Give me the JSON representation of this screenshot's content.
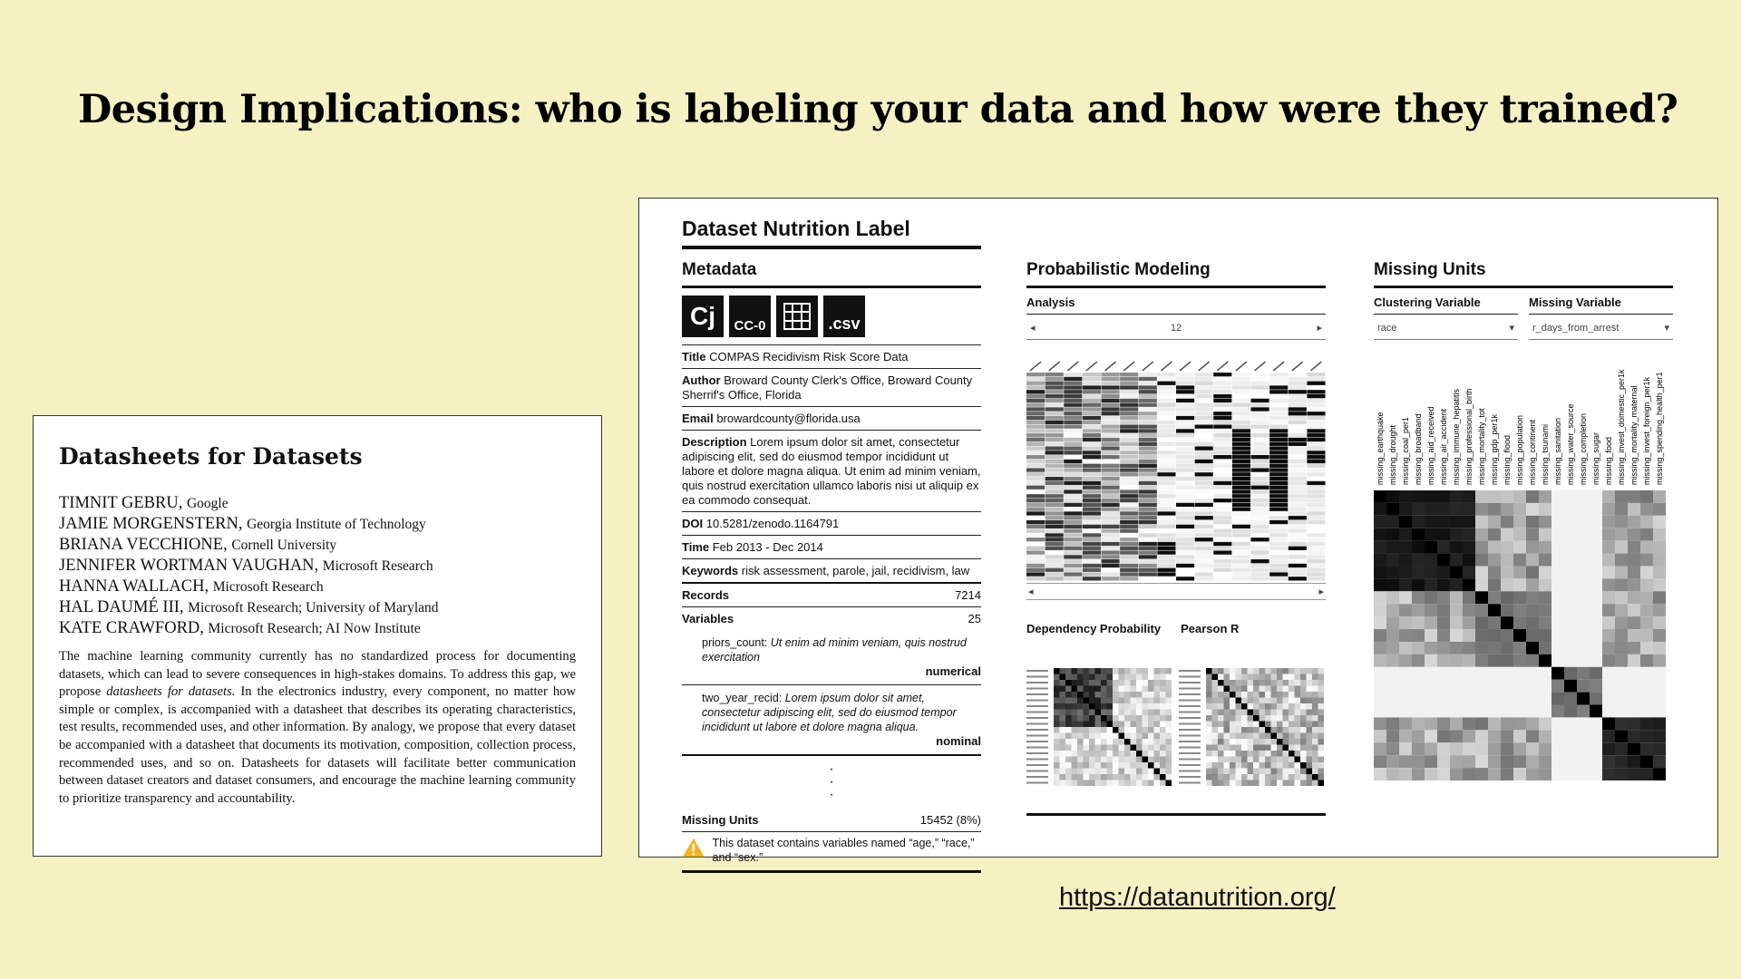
{
  "slide": {
    "title": "Design Implications: who is labeling your data and how were they trained?",
    "link": "https://datanutrition.org/"
  },
  "datasheet": {
    "title": "Datasheets for Datasets",
    "authors": [
      {
        "name": "TIMNIT GEBRU,",
        "affiliation": "Google"
      },
      {
        "name": "JAMIE MORGENSTERN,",
        "affiliation": "Georgia Institute of Technology"
      },
      {
        "name": "BRIANA VECCHIONE,",
        "affiliation": "Cornell University"
      },
      {
        "name": "JENNIFER WORTMAN VAUGHAN,",
        "affiliation": "Microsoft Research"
      },
      {
        "name": "HANNA WALLACH,",
        "affiliation": "Microsoft Research"
      },
      {
        "name": "HAL DAUMÉ III,",
        "affiliation": "Microsoft Research; University of Maryland"
      },
      {
        "name": "KATE CRAWFORD,",
        "affiliation": "Microsoft Research; AI Now Institute"
      }
    ],
    "abstract_part1": "The machine learning community currently has no standardized process for documenting datasets, which can lead to severe consequences in high-stakes domains. To address this gap, we propose ",
    "abstract_italic": "datasheets for datasets.",
    "abstract_part2": " In the electronics industry, every component, no matter how simple or complex, is accompanied with a datasheet that describes its operating characteristics, test results, recommended uses, and other information. By analogy, we propose that every dataset be accompanied with a datasheet that documents its motivation, composition, collection process, recommended uses, and so on. Datasheets for datasets will facilitate better communication between dataset creators and dataset consumers, and encourage the machine learning community to prioritize transparency and accountability."
  },
  "nutrition": {
    "title": "Dataset Nutrition Label",
    "metadata": {
      "heading": "Metadata",
      "icons": [
        "Cj",
        "CC-0",
        "grid-icon",
        ".csv"
      ],
      "title_label": "Title",
      "title_value": "COMPAS Recidivism Risk Score Data",
      "author_label": "Author",
      "author_value": "Broward County Clerk's Office, Broward County Sherrif's Office, Florida",
      "email_label": "Email",
      "email_value": "browardcounty@florida.usa",
      "description_label": "Description",
      "description_value": "Lorem ipsum dolor sit amet, consectetur adipiscing elit, sed do eiusmod tempor incididunt ut labore et dolore magna aliqua. Ut enim ad minim veniam, quis nostrud exercitation ullamco laboris nisi ut aliquip ex ea commodo consequat.",
      "doi_label": "DOI",
      "doi_value": "10.5281/zenodo.1164791",
      "time_label": "Time",
      "time_value": "Feb 2013 - Dec 2014",
      "keywords_label": "Keywords",
      "keywords_value": "risk assessment, parole, jail, recidivism, law",
      "records_label": "Records",
      "records_value": "7214",
      "variables_label": "Variables",
      "variables_value": "25",
      "var1_name": "priors_count:",
      "var1_desc": "Ut enim ad minim veniam, quis nostrud exercitation",
      "var1_type": "numerical",
      "var2_name": "two_year_recid:",
      "var2_desc": "Lorem ipsum dolor sit amet, consectetur adipiscing elit, sed do eiusmod tempor incididunt ut labore et dolore magna aliqua.",
      "var2_type": "nominal",
      "missing_label": "Missing Units",
      "missing_value": "15452 (8%)",
      "warning": "This dataset contains variables named “age,” “race,” and “sex.”"
    },
    "prob": {
      "heading": "Probabilistic Modeling",
      "analysis_label": "Analysis",
      "analysis_value": "12",
      "dependency_label": "Dependency Probability",
      "pearson_label": "Pearson R"
    },
    "missing": {
      "heading": "Missing Units",
      "clustering_label": "Clustering Variable",
      "clustering_value": "race",
      "missing_var_label": "Missing Variable",
      "missing_var_value": "r_days_from_arrest",
      "columns": [
        "missing_earthquake",
        "missing_drought",
        "missing_coal_per1",
        "missing_broadband",
        "missing_aid_received",
        "missing_air_accident",
        "missing_immune_hepatitis",
        "missing_professional_birth",
        "missing_mortality_tot",
        "missing_gdp_per1k",
        "missing_flood",
        "missing_population",
        "missing_continent",
        "missing_tsunami",
        "missing_sanitation",
        "missing_water_source",
        "missing_completion",
        "missing_sugar",
        "missing_food",
        "missing_invest_domestic_per1k",
        "missing_mortality_maternal",
        "missing_invest_foreign_per1k",
        "missing_spending_health_per1"
      ]
    }
  }
}
